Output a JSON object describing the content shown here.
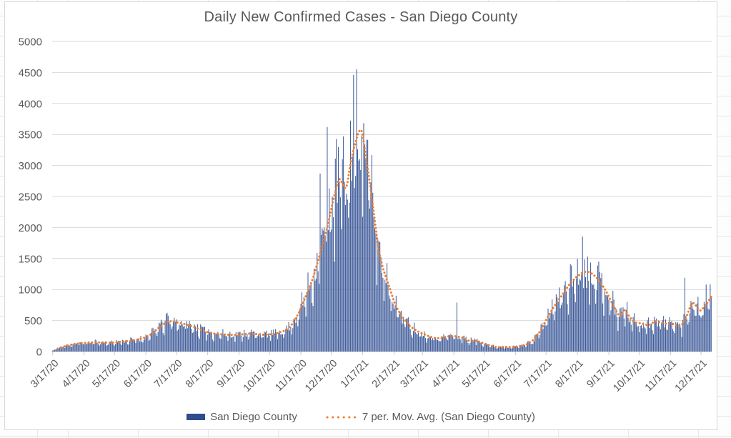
{
  "chart": {
    "title": "Daily New Confirmed Cases - San Diego County",
    "legend": {
      "series1_label": "San Diego County",
      "series2_label": "7 per. Mov. Avg. (San Diego County)"
    },
    "colors": {
      "bar": "#3D5A99",
      "bar_legend_swatch": "#2E4D8B",
      "moving_avg": "#ED7D31",
      "text": "#595959",
      "gridline": "#D9D9D9",
      "axis_line": "#C9C9C9",
      "chart_border": "#D8D8D8"
    }
  },
  "chart_data": {
    "type": "bar",
    "title": "Daily New Confirmed Cases - San Diego County",
    "xlabel": "",
    "ylabel": "",
    "ylim": [
      0,
      5000
    ],
    "y_tick_interval": 500,
    "y_tick_labels": [
      "0",
      "500",
      "1000",
      "1500",
      "2000",
      "2500",
      "3000",
      "3500",
      "4000",
      "4500",
      "5000"
    ],
    "grid": "horizontal",
    "legend_position": "bottom",
    "start_date": "3/17/20",
    "end_date": "12/27/21",
    "n_days": 651,
    "x_ticks": [
      {
        "label": "3/17/20",
        "day": 0
      },
      {
        "label": "4/17/20",
        "day": 31
      },
      {
        "label": "5/17/20",
        "day": 61
      },
      {
        "label": "6/17/20",
        "day": 92
      },
      {
        "label": "7/17/20",
        "day": 122
      },
      {
        "label": "8/17/20",
        "day": 153
      },
      {
        "label": "9/17/20",
        "day": 184
      },
      {
        "label": "10/17/20",
        "day": 214
      },
      {
        "label": "11/17/20",
        "day": 245
      },
      {
        "label": "12/17/20",
        "day": 275
      },
      {
        "label": "1/17/21",
        "day": 306
      },
      {
        "label": "2/17/21",
        "day": 337
      },
      {
        "label": "3/17/21",
        "day": 365
      },
      {
        "label": "4/17/21",
        "day": 396
      },
      {
        "label": "5/17/21",
        "day": 426
      },
      {
        "label": "6/17/21",
        "day": 457
      },
      {
        "label": "7/17/21",
        "day": 487
      },
      {
        "label": "8/17/21",
        "day": 518
      },
      {
        "label": "9/17/21",
        "day": 549
      },
      {
        "label": "10/17/21",
        "day": 579
      },
      {
        "label": "11/17/21",
        "day": 610
      },
      {
        "label": "12/17/21",
        "day": 640
      }
    ],
    "series": [
      {
        "name": "San Diego County",
        "type": "bar"
      },
      {
        "name": "7 per. Mov. Avg. (San Diego County)",
        "type": "dotted_line"
      }
    ],
    "moving_avg_anchors_day_value": [
      [
        0,
        15
      ],
      [
        7,
        60
      ],
      [
        14,
        95
      ],
      [
        21,
        120
      ],
      [
        28,
        135
      ],
      [
        35,
        140
      ],
      [
        42,
        150
      ],
      [
        49,
        145
      ],
      [
        56,
        140
      ],
      [
        63,
        150
      ],
      [
        70,
        162
      ],
      [
        77,
        175
      ],
      [
        84,
        195
      ],
      [
        91,
        225
      ],
      [
        98,
        285
      ],
      [
        105,
        390
      ],
      [
        112,
        470
      ],
      [
        117,
        490
      ],
      [
        124,
        465
      ],
      [
        131,
        440
      ],
      [
        138,
        405
      ],
      [
        145,
        360
      ],
      [
        152,
        315
      ],
      [
        159,
        290
      ],
      [
        166,
        280
      ],
      [
        173,
        272
      ],
      [
        180,
        268
      ],
      [
        187,
        278
      ],
      [
        194,
        290
      ],
      [
        201,
        282
      ],
      [
        208,
        270
      ],
      [
        215,
        278
      ],
      [
        222,
        300
      ],
      [
        229,
        335
      ],
      [
        236,
        430
      ],
      [
        243,
        620
      ],
      [
        250,
        900
      ],
      [
        257,
        1180
      ],
      [
        264,
        1580
      ],
      [
        271,
        2000
      ],
      [
        277,
        2450
      ],
      [
        283,
        2820
      ],
      [
        287,
        2660
      ],
      [
        290,
        2610
      ],
      [
        294,
        3050
      ],
      [
        298,
        3320
      ],
      [
        302,
        3550
      ],
      [
        305,
        3600
      ],
      [
        308,
        3280
      ],
      [
        311,
        2950
      ],
      [
        315,
        2500
      ],
      [
        318,
        2100
      ],
      [
        322,
        1610
      ],
      [
        326,
        1340
      ],
      [
        330,
        1150
      ],
      [
        334,
        960
      ],
      [
        337,
        800
      ],
      [
        341,
        665
      ],
      [
        344,
        590
      ],
      [
        348,
        495
      ],
      [
        351,
        430
      ],
      [
        355,
        380
      ],
      [
        362,
        310
      ],
      [
        369,
        262
      ],
      [
        376,
        220
      ],
      [
        383,
        212
      ],
      [
        390,
        245
      ],
      [
        397,
        250
      ],
      [
        404,
        222
      ],
      [
        411,
        172
      ],
      [
        418,
        176
      ],
      [
        425,
        135
      ],
      [
        432,
        95
      ],
      [
        439,
        70
      ],
      [
        446,
        78
      ],
      [
        453,
        70
      ],
      [
        460,
        85
      ],
      [
        467,
        108
      ],
      [
        474,
        178
      ],
      [
        481,
        320
      ],
      [
        488,
        540
      ],
      [
        495,
        730
      ],
      [
        502,
        890
      ],
      [
        509,
        1060
      ],
      [
        516,
        1190
      ],
      [
        523,
        1275
      ],
      [
        528,
        1292
      ],
      [
        533,
        1250
      ],
      [
        540,
        1140
      ],
      [
        547,
        950
      ],
      [
        554,
        720
      ],
      [
        560,
        545
      ],
      [
        564,
        690
      ],
      [
        568,
        590
      ],
      [
        574,
        470
      ],
      [
        581,
        455
      ],
      [
        588,
        420
      ],
      [
        595,
        495
      ],
      [
        602,
        455
      ],
      [
        609,
        445
      ],
      [
        613,
        445
      ],
      [
        617,
        418
      ],
      [
        620,
        400
      ],
      [
        624,
        505
      ],
      [
        627,
        620
      ],
      [
        630,
        762
      ],
      [
        633,
        795
      ],
      [
        635,
        737
      ],
      [
        637,
        680
      ],
      [
        640,
        648
      ],
      [
        642,
        705
      ],
      [
        645,
        762
      ],
      [
        648,
        830
      ],
      [
        650,
        880
      ]
    ],
    "daily_bars_model": {
      "description": "bar(day) = moving_avg(day) * weekday_factor[day % 7] * noise ; day 0 = Tuesday 3/17/20",
      "weekday_factors": [
        1.12,
        1.06,
        1.02,
        1.04,
        0.82,
        0.7,
        1.02
      ],
      "noise_seed": 11,
      "noise_amplitude": 0.44,
      "max_ratio_to_avg": 1.3,
      "outlier_bars_day_value": {
        "113": 625,
        "264": 2870,
        "271": 3620,
        "297": 4460,
        "300": 4550,
        "399": 790,
        "523": 1855,
        "624": 1190,
        "645": 1080,
        "649": 1085
      }
    }
  }
}
